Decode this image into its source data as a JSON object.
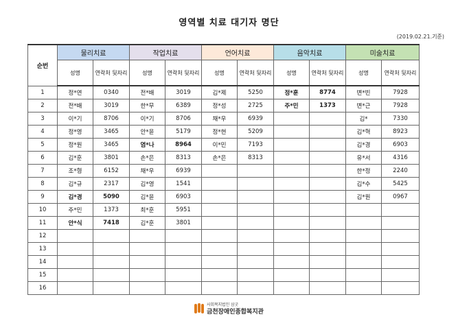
{
  "title": "영역별 치료 대기자 명단",
  "date": "(2019.02.21.기준)",
  "header": {
    "no_label": "순번",
    "name_label": "성명",
    "contact_label": "연락처 뒷자리",
    "categories": [
      "물리치료",
      "작업치료",
      "언어치료",
      "음악치료",
      "미술치료"
    ]
  },
  "rows": [
    {
      "no": "1",
      "cells": [
        [
          "정*연",
          "0340",
          0
        ],
        [
          "전*배",
          "3019",
          0
        ],
        [
          "김*제",
          "5250",
          0
        ],
        [
          "정*훈",
          "8774",
          1
        ],
        [
          "변*빈",
          "7928",
          0
        ]
      ]
    },
    {
      "no": "2",
      "cells": [
        [
          "전*배",
          "3019",
          0
        ],
        [
          "한*무",
          "6389",
          0
        ],
        [
          "정*성",
          "2725",
          0
        ],
        [
          "주*민",
          "1373",
          1
        ],
        [
          "변*근",
          "7928",
          0
        ]
      ]
    },
    {
      "no": "3",
      "cells": [
        [
          "이*기",
          "8706",
          0
        ],
        [
          "이*기",
          "8706",
          0
        ],
        [
          "채*우",
          "6939",
          0
        ],
        [
          "",
          "",
          0
        ],
        [
          "김*",
          "7330",
          0
        ]
      ]
    },
    {
      "no": "4",
      "cells": [
        [
          "정*영",
          "3465",
          0
        ],
        [
          "안*윤",
          "5179",
          0
        ],
        [
          "정*현",
          "5209",
          0
        ],
        [
          "",
          "",
          0
        ],
        [
          "김*혁",
          "8923",
          0
        ]
      ]
    },
    {
      "no": "5",
      "cells": [
        [
          "정*원",
          "3465",
          0
        ],
        [
          "염*나",
          "8964",
          1
        ],
        [
          "이*민",
          "7193",
          0
        ],
        [
          "",
          "",
          0
        ],
        [
          "김*경",
          "6903",
          0
        ]
      ]
    },
    {
      "no": "6",
      "cells": [
        [
          "김*훈",
          "3801",
          0
        ],
        [
          "손*은",
          "8313",
          0
        ],
        [
          "손*은",
          "8313",
          0
        ],
        [
          "",
          "",
          0
        ],
        [
          "유*서",
          "4316",
          0
        ]
      ]
    },
    {
      "no": "7",
      "cells": [
        [
          "조*형",
          "6152",
          0
        ],
        [
          "채*우",
          "6939",
          0
        ],
        [
          "",
          "",
          0
        ],
        [
          "",
          "",
          0
        ],
        [
          "한*정",
          "2240",
          0
        ]
      ]
    },
    {
      "no": "8",
      "cells": [
        [
          "김*규",
          "2317",
          0
        ],
        [
          "김*영",
          "1541",
          0
        ],
        [
          "",
          "",
          0
        ],
        [
          "",
          "",
          0
        ],
        [
          "김*수",
          "5425",
          0
        ]
      ]
    },
    {
      "no": "9",
      "cells": [
        [
          "김*경",
          "5090",
          1
        ],
        [
          "김*윤",
          "6903",
          0
        ],
        [
          "",
          "",
          0
        ],
        [
          "",
          "",
          0
        ],
        [
          "김*원",
          "0967",
          0
        ]
      ]
    },
    {
      "no": "10",
      "cells": [
        [
          "주*민",
          "1373",
          0
        ],
        [
          "최*훈",
          "5951",
          0
        ],
        [
          "",
          "",
          0
        ],
        [
          "",
          "",
          0
        ],
        [
          "",
          "",
          0
        ]
      ]
    },
    {
      "no": "11",
      "cells": [
        [
          "안*식",
          "7418",
          1
        ],
        [
          "김*훈",
          "3801",
          0
        ],
        [
          "",
          "",
          0
        ],
        [
          "",
          "",
          0
        ],
        [
          "",
          "",
          0
        ]
      ]
    },
    {
      "no": "12",
      "cells": [
        [
          "",
          "",
          0
        ],
        [
          "",
          "",
          0
        ],
        [
          "",
          "",
          0
        ],
        [
          "",
          "",
          0
        ],
        [
          "",
          "",
          0
        ]
      ]
    },
    {
      "no": "13",
      "cells": [
        [
          "",
          "",
          0
        ],
        [
          "",
          "",
          0
        ],
        [
          "",
          "",
          0
        ],
        [
          "",
          "",
          0
        ],
        [
          "",
          "",
          0
        ]
      ]
    },
    {
      "no": "14",
      "cells": [
        [
          "",
          "",
          0
        ],
        [
          "",
          "",
          0
        ],
        [
          "",
          "",
          0
        ],
        [
          "",
          "",
          0
        ],
        [
          "",
          "",
          0
        ]
      ]
    },
    {
      "no": "15",
      "cells": [
        [
          "",
          "",
          0
        ],
        [
          "",
          "",
          0
        ],
        [
          "",
          "",
          0
        ],
        [
          "",
          "",
          0
        ],
        [
          "",
          "",
          0
        ]
      ]
    },
    {
      "no": "16",
      "cells": [
        [
          "",
          "",
          0
        ],
        [
          "",
          "",
          0
        ],
        [
          "",
          "",
          0
        ],
        [
          "",
          "",
          0
        ],
        [
          "",
          "",
          0
        ]
      ]
    }
  ],
  "footer": {
    "org_sub": "사회복지법인 삼굿",
    "org_name": "금천장애인종합복지관",
    "accent": "#e07b1a"
  }
}
